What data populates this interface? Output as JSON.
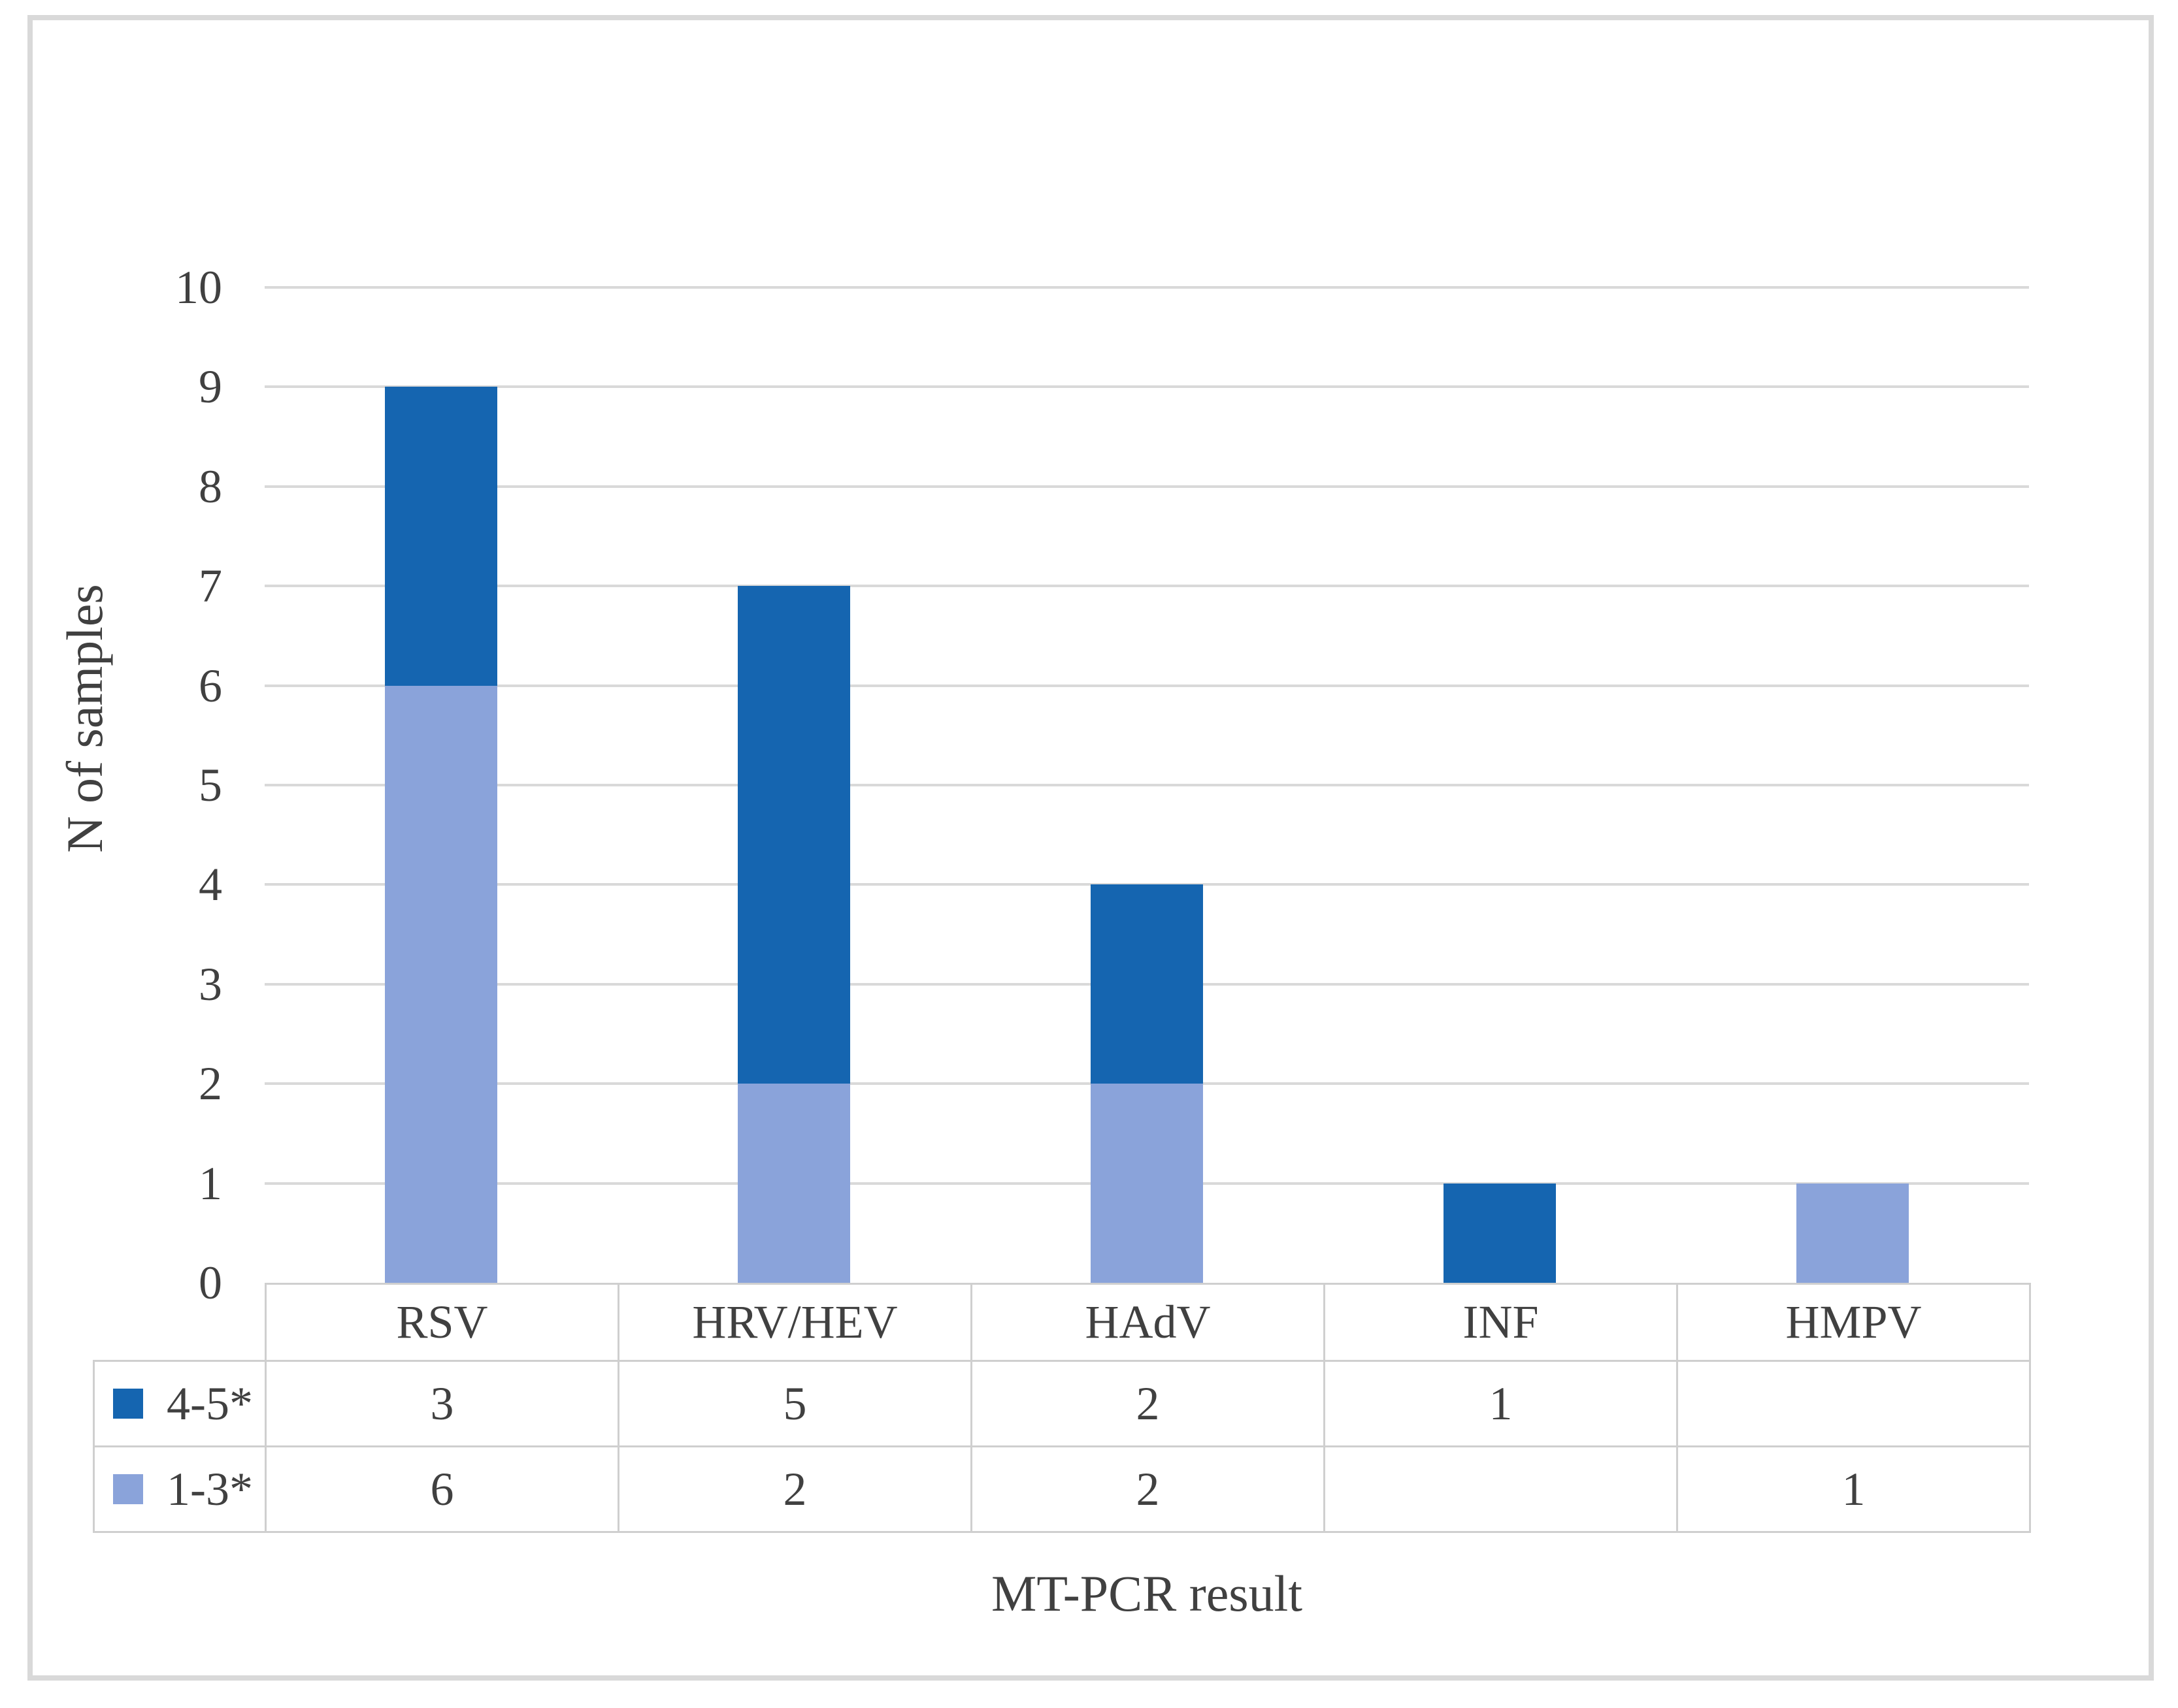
{
  "figure": {
    "background": "#FFFFFF",
    "border_color": "#D9D9D9"
  },
  "chart_data": {
    "type": "bar",
    "stacked": true,
    "title": "",
    "xlabel": "MT-PCR result",
    "ylabel": "N of samples",
    "categories": [
      "RSV",
      "HRV/HEV",
      "HAdV",
      "INF",
      "HMPV"
    ],
    "series": [
      {
        "name": "4-5*",
        "color": "#1565B0",
        "values": [
          3,
          5,
          2,
          1,
          null
        ]
      },
      {
        "name": "1-3*",
        "color": "#8AA3DA",
        "values": [
          6,
          2,
          2,
          null,
          1
        ]
      }
    ],
    "stack_bottom_to_top": [
      "1-3*",
      "4-5*"
    ],
    "ylim": [
      0,
      10
    ],
    "ytick_labels": [
      "0",
      "1",
      "2",
      "3",
      "4",
      "5",
      "6",
      "7",
      "8",
      "9",
      "10"
    ],
    "grid": true,
    "gridline_color": "#D9D9D9",
    "axis_text_color": "#404040",
    "table_border_color": "#CFCFCF",
    "legend_position": "data-table-left",
    "data_table_shown": true
  }
}
